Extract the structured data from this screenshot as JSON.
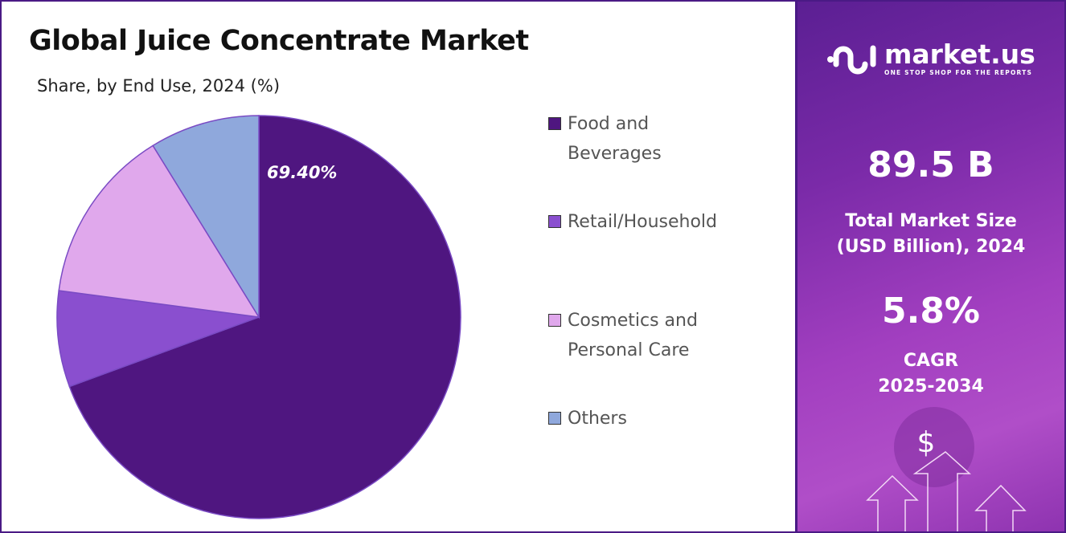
{
  "title": "Global Juice Concentrate Market",
  "subtitle": "Share, by End Use, 2024 (%)",
  "chart_data": {
    "type": "pie",
    "title": "Global Juice Concentrate Market",
    "subtitle": "Share, by End Use, 2024 (%)",
    "categories": [
      "Food and Beverages",
      "Retail/Household",
      "Cosmetics and Personal Care",
      "Others"
    ],
    "values": [
      69.4,
      7.7,
      14.1,
      8.8
    ],
    "colors": [
      "#4f1680",
      "#8a4fcf",
      "#e0a8ec",
      "#8fa8dc"
    ],
    "data_labels": [
      "69.40%"
    ],
    "legend_position": "right",
    "legend": [
      [
        "Food and",
        "Beverages"
      ],
      [
        "Retail/Household"
      ],
      [
        "Cosmetics and",
        "Personal Care"
      ],
      [
        "Others"
      ]
    ]
  },
  "brand": {
    "name": "market.us",
    "tagline": "ONE STOP SHOP FOR THE REPORTS"
  },
  "stats": {
    "market_size": "89.5 B",
    "market_size_label_1": "Total Market Size",
    "market_size_label_2": "(USD Billion), 2024",
    "cagr": "5.8%",
    "cagr_label_1": "CAGR",
    "cagr_label_2": "2025-2034"
  },
  "decor": {
    "dollar": "$"
  }
}
